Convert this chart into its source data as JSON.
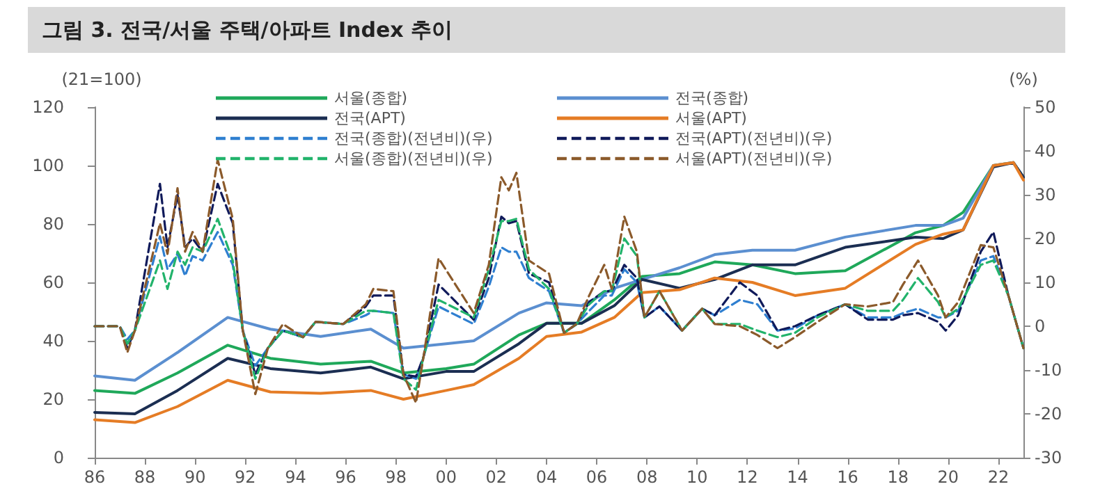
{
  "chart_data": {
    "type": "line",
    "title": "그림 3. 전국/서울 주택/아파트 Index 추이",
    "ylabel": "(21=100)",
    "y2label": "(%)",
    "xlim": [
      1986,
      2023
    ],
    "xticks": [
      {
        "value": 1986,
        "label": "86"
      },
      {
        "value": 1988,
        "label": "88"
      },
      {
        "value": 1990,
        "label": "90"
      },
      {
        "value": 1992,
        "label": "92"
      },
      {
        "value": 1994,
        "label": "94"
      },
      {
        "value": 1996,
        "label": "96"
      },
      {
        "value": 1998,
        "label": "98"
      },
      {
        "value": 2000,
        "label": "00"
      },
      {
        "value": 2002,
        "label": "02"
      },
      {
        "value": 2004,
        "label": "04"
      },
      {
        "value": 2006,
        "label": "06"
      },
      {
        "value": 2008,
        "label": "08"
      },
      {
        "value": 2010,
        "label": "10"
      },
      {
        "value": 2012,
        "label": "12"
      },
      {
        "value": 2014,
        "label": "14"
      },
      {
        "value": 2016,
        "label": "16"
      },
      {
        "value": 2018,
        "label": "18"
      },
      {
        "value": 2020,
        "label": "20"
      },
      {
        "value": 2022,
        "label": "22"
      }
    ],
    "ylim": [
      0,
      120
    ],
    "yticks": [
      0,
      20,
      40,
      60,
      80,
      100,
      120
    ],
    "y2lim": [
      -30,
      50
    ],
    "y2ticks": [
      -30,
      -20,
      -10,
      0,
      10,
      20,
      30,
      40,
      50
    ],
    "grid": false,
    "legend": "top",
    "marker": "none",
    "x": [
      1986,
      1987.6,
      1989.3,
      1991.3,
      1993,
      1995,
      1997,
      1998.3,
      2000,
      2001.1,
      2002.9,
      2004,
      2005.4,
      2006.7,
      2007.8,
      2009.3,
      2010.7,
      2012.2,
      2013.9,
      2015.9,
      2018.7,
      2019.8,
      2020.6,
      2021.8,
      2022.6,
      2023
    ],
    "series": [
      {
        "name": "서울(종합)",
        "color": "#1fa85a",
        "line_style": "solid",
        "values": [
          23,
          22,
          29,
          38.5,
          34,
          32,
          33,
          29,
          30.5,
          32,
          42,
          46,
          46,
          54,
          62,
          63,
          67,
          66,
          63,
          64,
          77,
          79.5,
          84,
          100,
          101,
          96
        ]
      },
      {
        "name": "전국(종합)",
        "color": "#5b8fd0",
        "line_style": "solid",
        "values": [
          28,
          26.5,
          36,
          48,
          44,
          41.5,
          44,
          37.5,
          39,
          40,
          49.5,
          53,
          52,
          58,
          61,
          65,
          69.5,
          71,
          71,
          75.5,
          79.5,
          79.5,
          82,
          100,
          101,
          96
        ]
      },
      {
        "name": "전국(APT)",
        "color": "#1b2e52",
        "line_style": "solid",
        "values": [
          15.5,
          15,
          23,
          34,
          30.5,
          29,
          31,
          27,
          29.5,
          29.5,
          39,
          46,
          46,
          52,
          61,
          58,
          61,
          66,
          66,
          72,
          75.5,
          75,
          78,
          99.5,
          101,
          96
        ]
      },
      {
        "name": "서울(APT)",
        "color": "#e57c25",
        "line_style": "solid",
        "values": [
          13,
          12,
          17.5,
          26.5,
          22.5,
          22,
          23,
          20,
          23,
          25,
          34,
          41.5,
          43,
          48,
          56.5,
          57.5,
          61.5,
          60,
          55.5,
          58,
          73,
          76.5,
          78,
          100,
          101,
          95
        ]
      },
      {
        "name": "전국(종합)(전년비)(우)",
        "color": "#2f7fd0",
        "line_style": "dashed",
        "axis": "y2",
        "x": [
          1986,
          1987,
          1987.3,
          1987.6,
          1988.6,
          1988.9,
          1989.3,
          1989.6,
          1989.9,
          1990.3,
          1990.9,
          1991.5,
          1991.9,
          1992.4,
          1992.9,
          1993.5,
          1994.3,
          1994.8,
          1995.9,
          1996.8,
          1997.1,
          1997.9,
          1998.3,
          1998.8,
          1999.1,
          1999.7,
          2001.1,
          2001.7,
          2002.2,
          2002.5,
          2002.8,
          2003.3,
          2004.1,
          2004.7,
          2005.2,
          2005.7,
          2006.3,
          2006.6,
          2007.1,
          2007.6,
          2007.9,
          2008.5,
          2009.4,
          2010.2,
          2010.7,
          2011.7,
          2012.4,
          2013.2,
          2013.9,
          2014.8,
          2015.9,
          2016.8,
          2017.8,
          2018.2,
          2018.8,
          2019.6,
          2019.9,
          2020.4,
          2021.3,
          2021.8,
          2022.4,
          2023
        ],
        "values": [
          0,
          0,
          -3,
          -1,
          20.5,
          13,
          16.5,
          11.5,
          16,
          15,
          21.5,
          14,
          -1,
          -9,
          -5,
          -1,
          -2.5,
          1,
          0.5,
          2.5,
          3.5,
          3,
          -11,
          -12,
          -7,
          4.5,
          0.5,
          9,
          18,
          17,
          17,
          11,
          8,
          -1.5,
          0.5,
          3.5,
          7,
          7,
          13,
          10,
          2,
          4.5,
          -1,
          4,
          2.5,
          6,
          5,
          -1,
          -0.5,
          2.5,
          5,
          2,
          2,
          3,
          4,
          2,
          2,
          3.5,
          15,
          16,
          7,
          -5
        ]
      },
      {
        "name": "전국(APT)(전년비)(우)",
        "color": "#101a5a",
        "line_style": "dashed",
        "axis": "y2",
        "x": [
          1986,
          1987,
          1987.3,
          1987.6,
          1988.6,
          1988.9,
          1989.3,
          1989.6,
          1989.9,
          1990.3,
          1990.9,
          1991.5,
          1991.9,
          1992.4,
          1992.9,
          1993.5,
          1994.3,
          1994.8,
          1995.9,
          1996.8,
          1997.1,
          1997.9,
          1998.3,
          1998.8,
          1999.1,
          1999.7,
          2001.1,
          2001.7,
          2002.2,
          2002.5,
          2002.8,
          2003.3,
          2004.1,
          2004.7,
          2005.2,
          2005.7,
          2006.3,
          2006.6,
          2007.1,
          2007.6,
          2007.9,
          2008.5,
          2009.4,
          2010.2,
          2010.7,
          2011.7,
          2012.4,
          2013.2,
          2013.9,
          2014.8,
          2015.9,
          2016.8,
          2017.8,
          2018.2,
          2018.8,
          2019.6,
          2019.9,
          2020.4,
          2021.3,
          2021.8,
          2022.4,
          2023
        ],
        "values": [
          0,
          0,
          -5,
          -1,
          32.5,
          18,
          30,
          18,
          20,
          17,
          32.5,
          23.5,
          -1,
          -11,
          -5,
          -1,
          -2.5,
          1,
          0.5,
          4.5,
          7,
          7,
          -11,
          -11.5,
          -7,
          9.5,
          1.5,
          11,
          25,
          23.5,
          24,
          12,
          10,
          -1.5,
          0.5,
          5.5,
          8,
          8,
          14,
          11,
          2,
          4.5,
          -1,
          4,
          2.5,
          10,
          7,
          -1,
          0,
          2.5,
          5,
          1.5,
          1.5,
          2.5,
          3,
          1,
          -1,
          2.5,
          17,
          21.5,
          7,
          -5
        ]
      },
      {
        "name": "서울(종합)(전년비)(우)",
        "color": "#22b36b",
        "line_style": "dashed",
        "axis": "y2",
        "x": [
          1986,
          1987,
          1987.3,
          1987.6,
          1988.6,
          1988.9,
          1989.3,
          1989.6,
          1989.9,
          1990.3,
          1990.9,
          1991.5,
          1991.9,
          1992.4,
          1992.9,
          1993.5,
          1994.3,
          1994.8,
          1995.9,
          1996.8,
          1997.1,
          1997.9,
          1998.3,
          1998.8,
          1999.1,
          1999.7,
          2001.1,
          2001.7,
          2002.2,
          2002.5,
          2002.8,
          2003.3,
          2004.1,
          2004.7,
          2005.2,
          2005.7,
          2006.3,
          2006.6,
          2007.1,
          2007.6,
          2007.9,
          2008.5,
          2009.4,
          2010.2,
          2010.7,
          2011.7,
          2012.4,
          2013.2,
          2013.9,
          2014.8,
          2015.9,
          2016.8,
          2017.8,
          2018.2,
          2018.8,
          2019.6,
          2019.9,
          2020.4,
          2021.3,
          2021.8,
          2022.4,
          2023
        ],
        "values": [
          0,
          0,
          -4,
          -1,
          15,
          8.5,
          17,
          14,
          18,
          17,
          24.5,
          15,
          -1,
          -12,
          -5,
          -1,
          -2.5,
          1,
          0.5,
          3.5,
          3.5,
          3,
          -12,
          -14.5,
          -7,
          6,
          2,
          13,
          24,
          24,
          24.5,
          13,
          8.5,
          -1.5,
          0.5,
          5,
          8,
          8,
          20,
          16,
          2,
          8,
          -1,
          4,
          0.5,
          0.5,
          -1,
          -2.5,
          -1.5,
          2,
          5,
          3.5,
          3.5,
          6,
          11,
          5.5,
          2,
          4,
          14,
          15,
          7,
          -5
        ]
      },
      {
        "name": "서울(APT)(전년비)(우)",
        "color": "#8b5a2b",
        "line_style": "dashed",
        "axis": "y2",
        "x": [
          1986,
          1987,
          1987.3,
          1987.6,
          1988.6,
          1988.9,
          1989.3,
          1989.6,
          1989.9,
          1990.3,
          1990.9,
          1991.5,
          1991.9,
          1992.4,
          1992.9,
          1993.5,
          1994.3,
          1994.8,
          1995.9,
          1996.8,
          1997.1,
          1997.9,
          1998.3,
          1998.8,
          1999.1,
          1999.7,
          2001.1,
          2001.7,
          2002.2,
          2002.5,
          2002.8,
          2003.3,
          2004.1,
          2004.7,
          2005.2,
          2005.7,
          2006.3,
          2006.6,
          2007.1,
          2007.6,
          2007.9,
          2008.5,
          2009.4,
          2010.2,
          2010.7,
          2011.7,
          2012.4,
          2013.2,
          2013.9,
          2014.8,
          2015.9,
          2016.8,
          2017.8,
          2018.2,
          2018.8,
          2019.6,
          2019.9,
          2020.4,
          2021.3,
          2021.8,
          2022.4,
          2023
        ],
        "values": [
          0,
          0,
          -6,
          -1,
          23.5,
          16.5,
          31.5,
          17,
          21.5,
          17,
          38,
          24.5,
          -1,
          -15.5,
          -5,
          0.5,
          -2.5,
          1,
          0.5,
          5,
          8.5,
          8,
          -11,
          -17.5,
          -7,
          15.5,
          3,
          14,
          34,
          31,
          35,
          15,
          12,
          -1.5,
          0.5,
          7,
          14,
          8.5,
          25,
          17,
          2,
          8,
          -1,
          4,
          0.5,
          0,
          -2,
          -5,
          -2.5,
          1,
          5,
          4.5,
          5.5,
          9.5,
          15,
          7,
          2,
          5.5,
          18.5,
          18,
          7,
          -5
        ]
      }
    ]
  }
}
